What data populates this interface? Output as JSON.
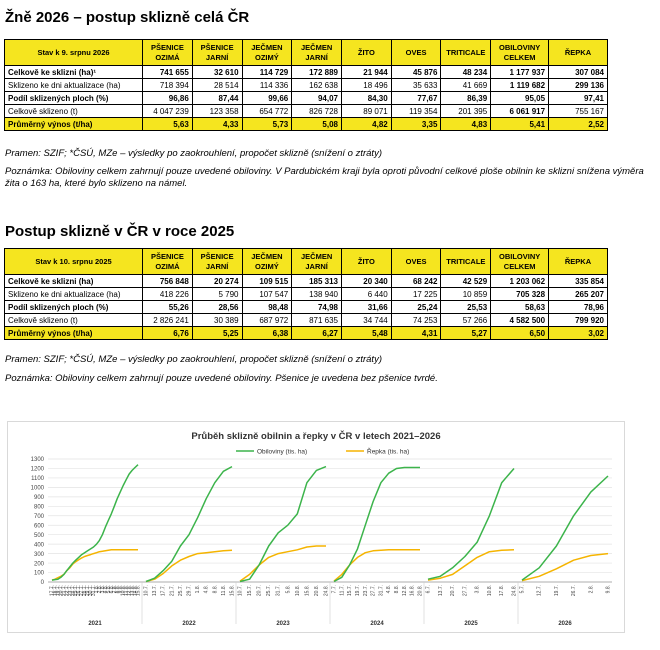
{
  "section1": {
    "title": "Žně 2026 – postup sklizně celá ČR",
    "state_label": "Stav k 9. srpnu 2026",
    "columns": [
      [
        "PŠENICE",
        "OZIMÁ"
      ],
      [
        "PŠENICE",
        "JARNÍ"
      ],
      [
        "JEČMEN",
        "OZIMÝ"
      ],
      [
        "JEČMEN",
        "JARNÍ"
      ],
      [
        "ŽITO",
        ""
      ],
      [
        "OVES",
        ""
      ],
      [
        "TRITICALE",
        ""
      ],
      [
        "OBILOVINY",
        "CELKEM"
      ],
      [
        "ŘEPKA",
        ""
      ]
    ],
    "rows": [
      {
        "label": "Celkově ke sklizni (ha)¹",
        "values": [
          "741 655",
          "32 610",
          "114 729",
          "172 889",
          "21 944",
          "45 876",
          "48 234",
          "1 177 937",
          "307 084"
        ],
        "style": "bold"
      },
      {
        "label": "Sklizeno ke dni aktualizace (ha)",
        "values": [
          "718 394",
          "28 514",
          "114 336",
          "162 638",
          "18 496",
          "35 633",
          "41 669",
          "1 119 682",
          "299 136"
        ],
        "style": "normal",
        "hl": [
          7,
          8
        ]
      },
      {
        "label": "Podíl sklizených ploch (%)",
        "values": [
          "96,86",
          "87,44",
          "99,66",
          "94,07",
          "84,30",
          "77,67",
          "86,39",
          "95,05",
          "97,41"
        ],
        "style": "bold"
      },
      {
        "label": "Celkově sklizeno (t)",
        "values": [
          "4 047 239",
          "123 358",
          "654 772",
          "826 728",
          "89 071",
          "119 354",
          "201 395",
          "6 061 917",
          "755 167"
        ],
        "style": "normal",
        "hl": [
          7
        ]
      },
      {
        "label": "Průměrný výnos (t/ha)",
        "values": [
          "5,63",
          "4,33",
          "5,73",
          "5,08",
          "4,82",
          "3,35",
          "4,83",
          "5,41",
          "2,52"
        ],
        "style": "yellow"
      }
    ],
    "source": "Pramen: SZIF; *ČSÚ, MZe – výsledky po zaokrouhlení, propočet sklizně (snížení o ztráty)",
    "note": "Poznámka: Obiloviny celkem zahrnují pouze uvedené obiloviny. V Pardubickém kraji byla oproti původní celkové ploše obilnin ke sklizni snížena výměra žita o 163 ha, které bylo sklizeno na námel."
  },
  "section2": {
    "title": "Postup sklizně v ČR v roce 2025",
    "state_label": "Stav k 10. srpnu 2025",
    "columns": [
      [
        "PŠENICE",
        "OZIMÁ"
      ],
      [
        "PŠENICE",
        "JARNÍ"
      ],
      [
        "JEČMEN",
        "OZIMÝ"
      ],
      [
        "JEČMEN",
        "JARNÍ"
      ],
      [
        "ŽITO",
        ""
      ],
      [
        "OVES",
        ""
      ],
      [
        "TRITICALE",
        ""
      ],
      [
        "OBILOVINY",
        "CELKEM"
      ],
      [
        "ŘEPKA",
        ""
      ]
    ],
    "rows": [
      {
        "label": "Celkově ke sklizni (ha)",
        "values": [
          "756 848",
          "20 274",
          "109 515",
          "185 313",
          "20 340",
          "68 242",
          "42 529",
          "1 203 062",
          "335 854"
        ],
        "style": "bold"
      },
      {
        "label": "Sklizeno ke dni aktualizace (ha)",
        "values": [
          "418 226",
          "5 790",
          "107 547",
          "138 940",
          "6 440",
          "17 225",
          "10 859",
          "705 328",
          "265 207"
        ],
        "style": "normal",
        "hl": [
          7,
          8
        ]
      },
      {
        "label": "Podíl sklizených ploch (%)",
        "values": [
          "55,26",
          "28,56",
          "98,48",
          "74,98",
          "31,66",
          "25,24",
          "25,53",
          "58,63",
          "78,96"
        ],
        "style": "bold"
      },
      {
        "label": "Celkově sklizeno (t)",
        "values": [
          "2 826 241",
          "30 389",
          "687 972",
          "871 635",
          "34 744",
          "74 253",
          "57 266",
          "4 582 500",
          "799 920"
        ],
        "style": "normal",
        "hl": [
          7,
          8
        ]
      },
      {
        "label": "Průměrný výnos (t/ha)",
        "values": [
          "6,76",
          "5,25",
          "6,38",
          "6,27",
          "5,48",
          "4,31",
          "5,27",
          "6,50",
          "3,02"
        ],
        "style": "yellow"
      }
    ],
    "source": "Pramen: SZIF; *ČSÚ, MZe – výsledky po zaokrouhlení, propočet sklizně (snížení o ztráty)",
    "note": "Poznámka: Obiloviny celkem zahrnují pouze uvedené obiloviny. Pšenice je uvedena bez pšenice tvrdé."
  },
  "chart_data": {
    "type": "line",
    "title": "Průběh sklizně obilnin a řepky v ČR v letech 2021–2026",
    "yticks": [
      "0",
      "100",
      "200",
      "300",
      "400",
      "500",
      "600",
      "700",
      "800",
      "900",
      "1000",
      "1100",
      "1200",
      "1300"
    ],
    "ylim": [
      0,
      1300
    ],
    "grid": true,
    "legend": "top",
    "colors": {
      "cereals": "#3cb44b",
      "rapeseed": "#f5b400"
    },
    "series_names": [
      "Obiloviny (tis. ha)",
      "Řepka (tis. ha)"
    ],
    "years": [
      {
        "year": "2021",
        "dates": [
          "17.7.",
          "18.7.",
          "19.7.",
          "20.7.",
          "21.7.",
          "22.7.",
          "23.7.",
          "24.7.",
          "25.7.",
          "26.7.",
          "27.7.",
          "28.7.",
          "29.7.",
          "30.7.",
          "31.7.",
          "1.8.",
          "2.8.",
          "3.8.",
          "4.8.",
          "5.8.",
          "6.8.",
          "7.8.",
          "8.8.",
          "9.8.",
          "10.8.",
          "11.8.",
          "12.8.",
          "13.8.",
          "14.8.",
          "15.8."
        ],
        "cereals": [
          20,
          25,
          30,
          50,
          80,
          120,
          160,
          200,
          230,
          260,
          290,
          310,
          330,
          350,
          370,
          400,
          440,
          500,
          580,
          650,
          720,
          800,
          880,
          950,
          1020,
          1080,
          1140,
          1180,
          1210,
          1240
        ],
        "rapeseed": [
          20,
          30,
          45,
          60,
          80,
          120,
          150,
          190,
          215,
          235,
          255,
          270,
          280,
          290,
          300,
          310,
          320,
          325,
          330,
          335,
          340,
          340,
          340,
          340,
          340,
          340,
          340,
          340,
          340,
          340
        ]
      },
      {
        "year": "2022",
        "dates": [
          "10.7.",
          "13.7.",
          "17.7.",
          "21.7.",
          "25.7.",
          "29.7.",
          "1.8.",
          "4.8.",
          "8.8.",
          "11.8.",
          "15.8."
        ],
        "cereals": [
          5,
          40,
          120,
          220,
          380,
          500,
          680,
          880,
          1050,
          1170,
          1220
        ],
        "rapeseed": [
          5,
          30,
          90,
          170,
          230,
          270,
          300,
          310,
          320,
          330,
          335
        ]
      },
      {
        "year": "2023",
        "dates": [
          "10.7.",
          "15.7.",
          "20.7.",
          "25.7.",
          "31.7.",
          "5.8.",
          "10.8.",
          "15.8.",
          "20.8.",
          "24.8."
        ],
        "cereals": [
          5,
          30,
          180,
          380,
          520,
          600,
          720,
          1050,
          1180,
          1220
        ],
        "rapeseed": [
          10,
          80,
          180,
          260,
          300,
          320,
          340,
          370,
          380,
          380
        ]
      },
      {
        "year": "2024",
        "dates": [
          "7.7.",
          "11.7.",
          "15.7.",
          "19.7.",
          "23.7.",
          "27.7.",
          "31.7.",
          "4.8.",
          "8.8.",
          "12.8.",
          "16.8.",
          "20.8."
        ],
        "cereals": [
          5,
          50,
          180,
          350,
          600,
          850,
          1050,
          1150,
          1200,
          1210,
          1210,
          1210
        ],
        "rapeseed": [
          10,
          80,
          180,
          260,
          310,
          330,
          335,
          340,
          340,
          340,
          340,
          340
        ]
      },
      {
        "year": "2025",
        "dates": [
          "6.7.",
          "13.7.",
          "20.7.",
          "27.7.",
          "3.8.",
          "10.8.",
          "17.8.",
          "24.8."
        ],
        "cereals": [
          30,
          60,
          150,
          270,
          420,
          700,
          1050,
          1200
        ],
        "rapeseed": [
          20,
          40,
          80,
          170,
          260,
          320,
          335,
          340
        ]
      },
      {
        "year": "2026",
        "dates": [
          "5.7.",
          "12.7.",
          "19.7.",
          "26.7.",
          "2.8.",
          "9.8."
        ],
        "cereals": [
          20,
          150,
          380,
          700,
          950,
          1120
        ],
        "rapeseed": [
          15,
          60,
          140,
          230,
          280,
          300
        ]
      }
    ]
  }
}
